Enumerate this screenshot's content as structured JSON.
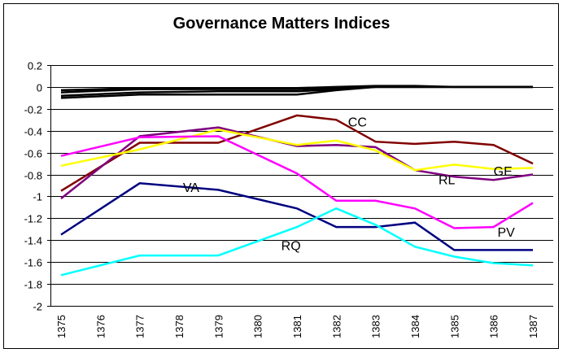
{
  "chart_data": {
    "type": "line",
    "title": "Governance Matters Indices",
    "xlabel": "",
    "ylabel": "",
    "ylim": [
      -2,
      0.2
    ],
    "yticks": [
      "0.2",
      "0",
      "-0.2",
      "-0.4",
      "-0.6",
      "-0.8",
      "-1",
      "-1.2",
      "-1.4",
      "-1.6",
      "-1.8",
      "-2"
    ],
    "ytick_values": [
      0.2,
      0,
      -0.2,
      -0.4,
      -0.6,
      -0.8,
      -1,
      -1.2,
      -1.4,
      -1.6,
      -1.8,
      -2
    ],
    "grid": true,
    "categories": [
      "1375",
      "1376",
      "1377",
      "1378",
      "1379",
      "1380",
      "1381",
      "1382",
      "1383",
      "1384",
      "1385",
      "1386",
      "1387"
    ],
    "series": [
      {
        "name": "CC",
        "color": "#800000",
        "values": [
          -0.95,
          null,
          -0.51,
          null,
          -0.51,
          null,
          -0.26,
          -0.3,
          -0.5,
          -0.52,
          -0.5,
          -0.53,
          -0.7
        ]
      },
      {
        "name": "RL",
        "color": "#800080",
        "values": [
          -1.02,
          null,
          -0.45,
          null,
          -0.37,
          null,
          -0.54,
          -0.53,
          -0.55,
          -0.76,
          -0.82,
          -0.85,
          -0.8
        ]
      },
      {
        "name": "GE",
        "color": "#ffff00",
        "values": [
          -0.72,
          null,
          -0.57,
          null,
          -0.39,
          null,
          -0.53,
          -0.49,
          -0.58,
          -0.76,
          -0.71,
          -0.75,
          -0.74
        ]
      },
      {
        "name": "PV",
        "color": "#ff00ff",
        "values": [
          -0.63,
          null,
          -0.46,
          null,
          -0.45,
          null,
          -0.79,
          -1.04,
          -1.04,
          -1.11,
          -1.29,
          -1.28,
          -1.06
        ]
      },
      {
        "name": "VA",
        "color": "#000080",
        "values": [
          -1.35,
          null,
          -0.88,
          null,
          -0.94,
          null,
          -1.11,
          -1.28,
          -1.28,
          -1.24,
          -1.49,
          -1.49,
          -1.49
        ]
      },
      {
        "name": "RQ",
        "color": "#00ffff",
        "values": [
          -1.72,
          null,
          -1.54,
          null,
          -1.54,
          null,
          -1.28,
          -1.11,
          -1.26,
          -1.46,
          -1.55,
          -1.61,
          -1.63
        ]
      },
      {
        "name": "",
        "color": "#000000",
        "values": [
          -0.03,
          null,
          -0.01,
          null,
          -0.01,
          null,
          -0.01,
          0.0,
          0.01,
          0.01,
          0.0,
          0.0,
          0.0
        ]
      },
      {
        "name": "",
        "color": "#000000",
        "values": [
          -0.05,
          null,
          -0.02,
          null,
          -0.02,
          null,
          -0.02,
          -0.01,
          0.0,
          0.0,
          0.0,
          0.0,
          0.0
        ]
      },
      {
        "name": "",
        "color": "#000000",
        "values": [
          -0.08,
          null,
          -0.05,
          null,
          -0.04,
          null,
          -0.04,
          -0.02,
          0.0,
          0.0,
          0.0,
          0.0,
          0.0
        ]
      },
      {
        "name": "",
        "color": "#000000",
        "values": [
          -0.1,
          null,
          -0.07,
          null,
          -0.07,
          null,
          -0.07,
          -0.03,
          0.0,
          0.0,
          0.0,
          0.0,
          0.0
        ]
      }
    ],
    "annotations": [
      {
        "text": "CC",
        "series": "CC"
      },
      {
        "text": "RL",
        "series": "RL"
      },
      {
        "text": "GE",
        "series": "GE"
      },
      {
        "text": "PV",
        "series": "PV"
      },
      {
        "text": "VA",
        "series": "VA"
      },
      {
        "text": "RQ",
        "series": "RQ"
      }
    ]
  }
}
